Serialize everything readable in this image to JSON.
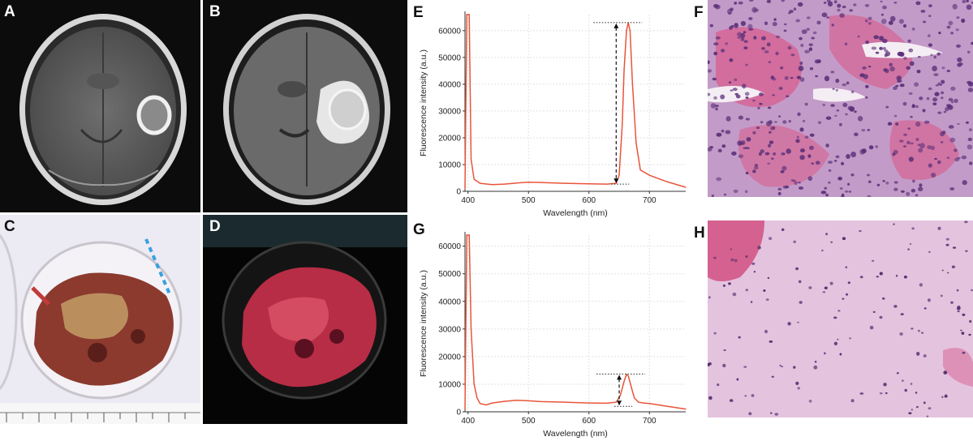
{
  "panels": {
    "A": "A",
    "B": "B",
    "C": "C",
    "D": "D",
    "E": "E",
    "F": "F",
    "G": "G",
    "H": "H"
  },
  "colors": {
    "spectrum_line": "#e8553a",
    "mri_bg": "#0c0c0c",
    "tissue_red": "#b23a3a",
    "he_pink": "#d98fc0",
    "he_nuclei": "#5a2f78"
  },
  "icons": {
    "mri_contrast": "mri-t1-contrast-icon",
    "mri_flair": "mri-flair-icon",
    "specimen_white_light": "specimen-white-light-icon",
    "specimen_fluorescence": "specimen-fluorescence-icon",
    "histology_tumor": "he-tumor-icon",
    "histology_normal": "he-brain-icon"
  },
  "chart_data": [
    {
      "id": "E",
      "type": "line",
      "xlabel": "Wavelength (nm)",
      "ylabel": "Fluorescence intensity (a.u.)",
      "xlim": [
        395,
        760
      ],
      "ylim": [
        0,
        66000
      ],
      "xticks": [
        400,
        500,
        600,
        700
      ],
      "yticks": [
        0,
        10000,
        20000,
        30000,
        40000,
        50000,
        60000
      ],
      "grid": true,
      "series": [
        {
          "x": [
            395,
            398,
            400,
            402,
            405,
            410,
            420,
            440,
            460,
            480,
            500,
            520,
            560,
            600,
            630,
            645,
            650,
            655,
            658,
            662,
            665,
            668,
            672,
            678,
            685,
            700,
            730,
            760
          ],
          "values": [
            1000,
            66000,
            66000,
            66000,
            12000,
            4500,
            3000,
            2500,
            2700,
            3100,
            3400,
            3300,
            3000,
            2800,
            2700,
            3000,
            6000,
            25000,
            45000,
            60000,
            63000,
            60000,
            40000,
            18000,
            8000,
            6000,
            3500,
            1500
          ]
        }
      ],
      "annotation": {
        "x": 645,
        "from": 2700,
        "to": 63000
      }
    },
    {
      "id": "G",
      "type": "line",
      "xlabel": "Wavelength (nm)",
      "ylabel": "Fluorescence intensity (a.u.)",
      "xlim": [
        395,
        760
      ],
      "ylim": [
        0,
        64000
      ],
      "xticks": [
        400,
        500,
        600,
        700
      ],
      "yticks": [
        0,
        10000,
        20000,
        30000,
        40000,
        50000,
        60000
      ],
      "grid": true,
      "series": [
        {
          "x": [
            395,
            398,
            400,
            402,
            405,
            410,
            415,
            420,
            430,
            440,
            460,
            480,
            500,
            520,
            560,
            600,
            630,
            645,
            652,
            658,
            662,
            665,
            670,
            675,
            682,
            690,
            700,
            730,
            760
          ],
          "values": [
            1000,
            64000,
            64000,
            64000,
            30000,
            10000,
            5000,
            3000,
            2500,
            3200,
            3800,
            4200,
            4000,
            3700,
            3500,
            3200,
            3100,
            3500,
            6000,
            11000,
            13500,
            13000,
            9000,
            5000,
            3500,
            3200,
            3000,
            2000,
            1000
          ]
        }
      ],
      "annotation": {
        "x": 650,
        "from": 2000,
        "to": 13700
      }
    }
  ]
}
